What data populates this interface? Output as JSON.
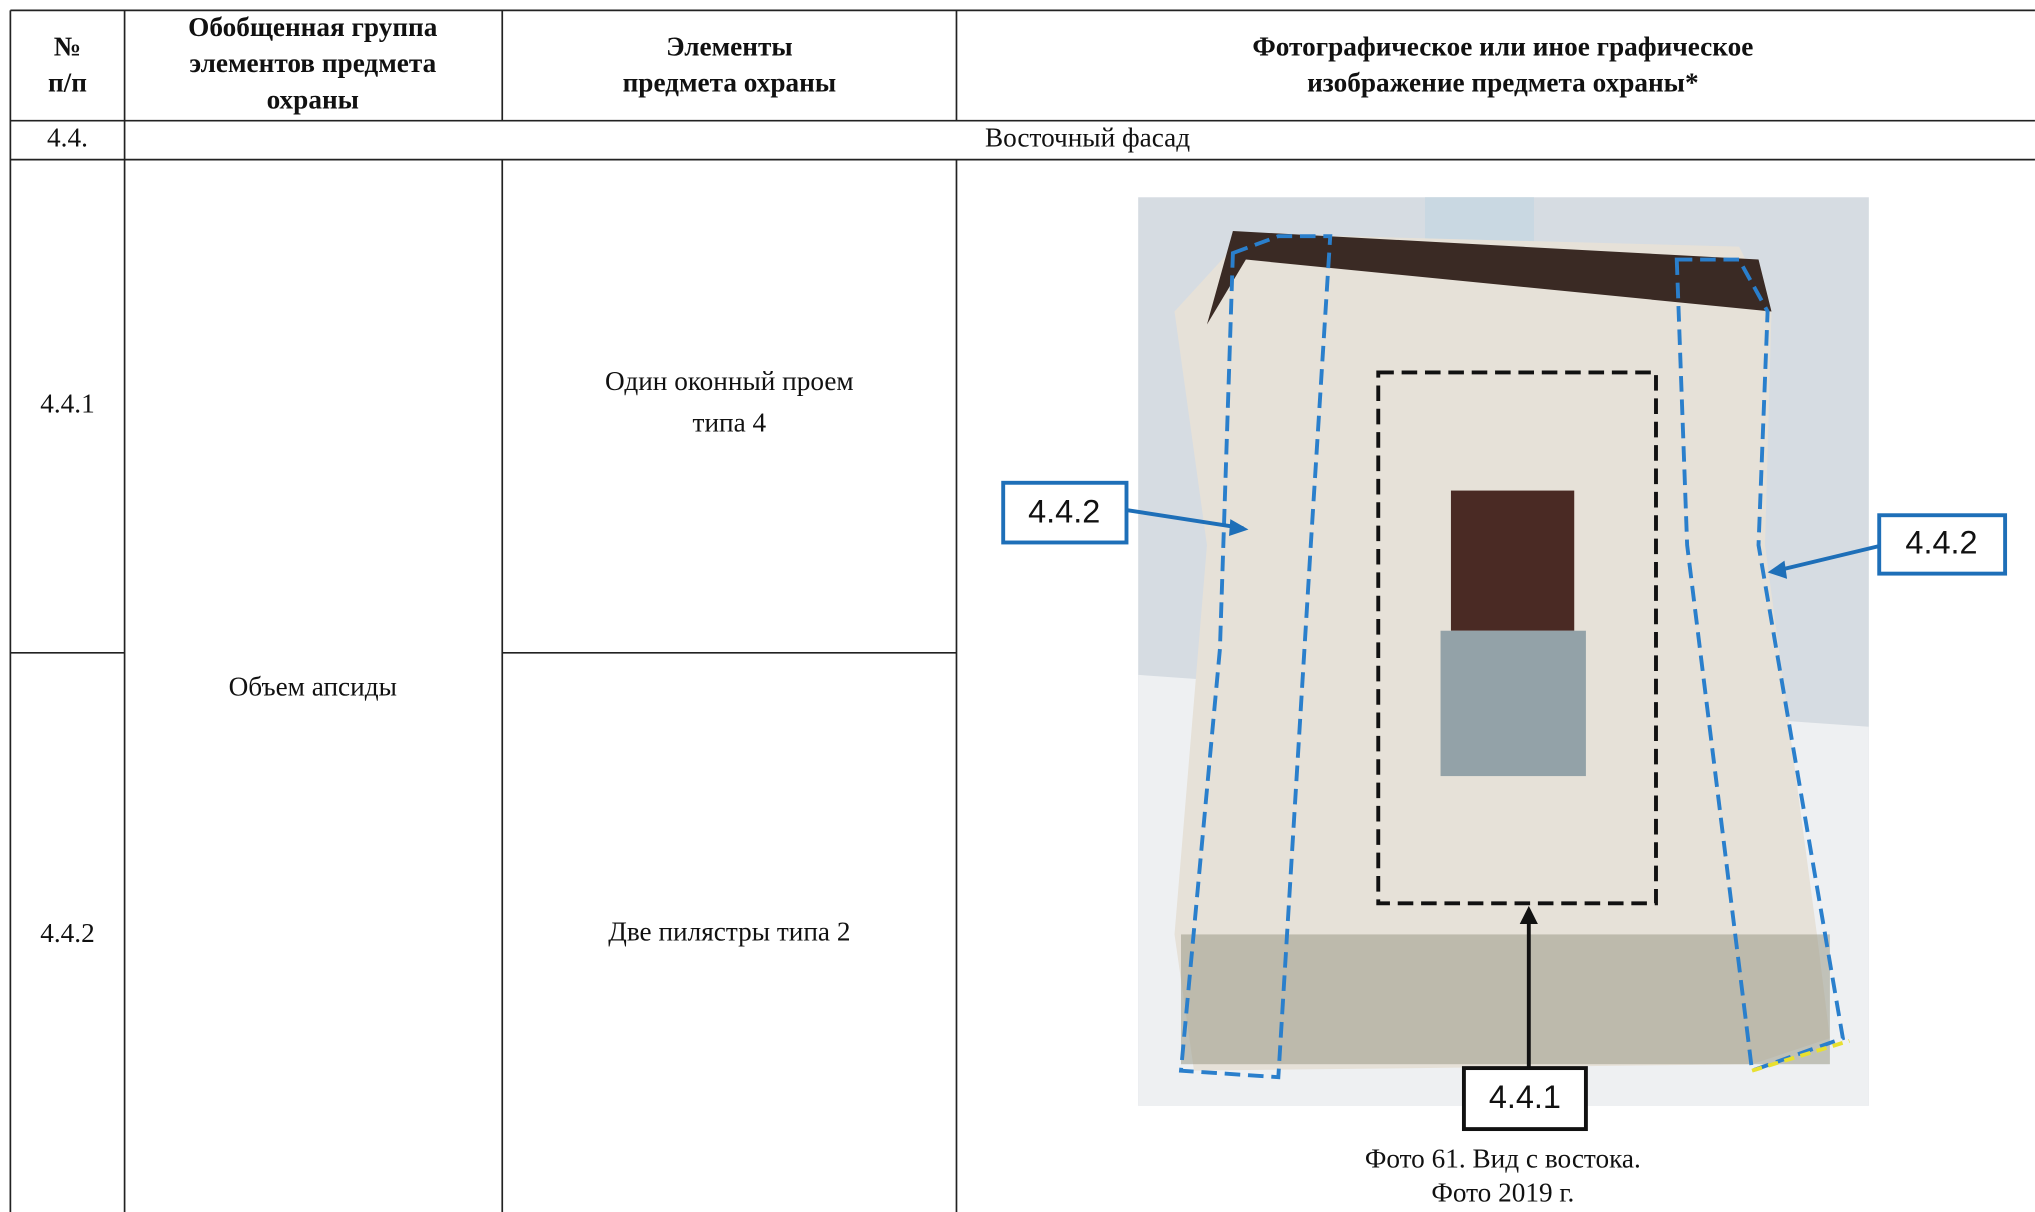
{
  "header": {
    "number": [
      "№",
      "п/п"
    ],
    "group": [
      "Обобщенная группа",
      "элементов предмета",
      "охраны"
    ],
    "elements": [
      "Элементы",
      "предмета охраны"
    ],
    "image": [
      "Фотографическое или иное графическое",
      "изображение предмета охраны*"
    ]
  },
  "section": {
    "number": "4.4.",
    "title": "Восточный фасад"
  },
  "group_cell": "Объем апсиды",
  "rows": [
    {
      "number": "4.4.1",
      "element": [
        "Один оконный проем",
        "типа 4"
      ]
    },
    {
      "number": "4.4.2",
      "element": [
        "Две пилястры типа 2"
      ]
    }
  ],
  "photo": {
    "labels": [
      "4.4.2",
      "4.4.2",
      "4.4.1"
    ],
    "caption": [
      "Фото 61. Вид с востока.",
      "Фото 2019 г."
    ]
  }
}
